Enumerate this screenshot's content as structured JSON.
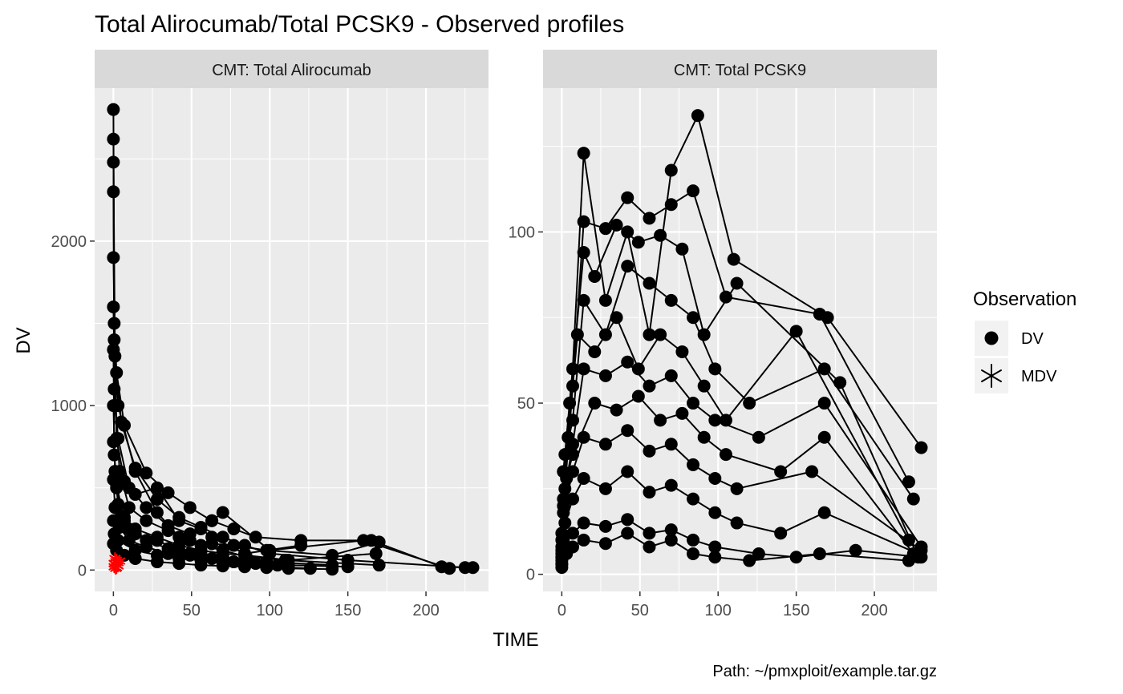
{
  "chart_data": {
    "type": "line",
    "title": "Total Alirocumab/Total PCSK9 - Observed profiles",
    "xlabel": "TIME",
    "ylabel": "DV",
    "caption": "Path: ~/pmxploit/example.tar.gz",
    "grid": true,
    "legend": {
      "title": "Observation",
      "position": "right",
      "entries": [
        {
          "label": "DV",
          "shape": "filled-circle",
          "color": "#000000"
        },
        {
          "label": "MDV",
          "shape": "asterisk",
          "color": "#000000"
        }
      ]
    },
    "colors": {
      "DV": "#000000",
      "MDV": "#ff0000",
      "panel_bg": "#ebebeb",
      "strip_bg": "#d9d9d9"
    },
    "panels": [
      {
        "strip": "CMT: Total Alirocumab",
        "xlim": [
          -12,
          240
        ],
        "ylim": [
          -130,
          2930
        ],
        "x_ticks": [
          0,
          50,
          100,
          150,
          200
        ],
        "x_tick_labels": [
          "0",
          "50",
          "100",
          "150",
          "200"
        ],
        "y_ticks": [
          0,
          1000,
          2000
        ],
        "y_tick_labels": [
          "0",
          "1000",
          "2000"
        ],
        "series": [
          {
            "x": [
              0,
              0.5,
              3,
              14,
              28,
              42,
              56,
              70,
              85,
              110,
              170
            ],
            "y": [
              2800,
              1400,
              1000,
              600,
              350,
              200,
              150,
              120,
              80,
              60,
              30
            ]
          },
          {
            "x": [
              0,
              0.5,
              2,
              7,
              21,
              35,
              49,
              63,
              77,
              91,
              120,
              165,
              210,
              230
            ],
            "y": [
              2620,
              1500,
              1200,
              880,
              590,
              470,
              380,
              300,
              250,
              200,
              180,
              180,
              20,
              15
            ]
          },
          {
            "x": [
              0,
              1,
              5,
              14,
              28,
              42,
              56,
              70,
              84,
              100,
              150,
              225
            ],
            "y": [
              2480,
              1300,
              900,
              620,
              430,
              320,
              260,
              200,
              150,
              100,
              60,
              15
            ]
          },
          {
            "x": [
              0,
              0.5,
              3,
              10,
              21,
              35,
              49,
              63,
              70,
              100,
              160,
              215
            ],
            "y": [
              2300,
              1100,
              800,
              500,
              380,
              270,
              220,
              300,
              350,
              120,
              180,
              10
            ]
          },
          {
            "x": [
              0,
              2,
              7,
              14,
              28,
              42,
              56,
              63,
              84,
              120
            ],
            "y": [
              1900,
              800,
              540,
              460,
              500,
              300,
              250,
              200,
              100,
              150
            ]
          },
          {
            "x": [
              0,
              1,
              4,
              10,
              21,
              35,
              49,
              63,
              77,
              98,
              140,
              170
            ],
            "y": [
              1600,
              1000,
              600,
              380,
              300,
              240,
              180,
              160,
              150,
              120,
              90,
              170
            ]
          },
          {
            "x": [
              0,
              0.5,
              2,
              7,
              14,
              28,
              42,
              56,
              70,
              84,
              112,
              168
            ],
            "y": [
              1340,
              700,
              520,
              300,
              250,
              200,
              150,
              120,
              100,
              90,
              60,
              100
            ]
          },
          {
            "x": [
              0,
              1,
              3,
              7,
              14,
              28,
              42,
              56,
              70,
              84,
              98,
              140
            ],
            "y": [
              1000,
              600,
              400,
              320,
              220,
              180,
              120,
              100,
              80,
              60,
              50,
              30
            ]
          },
          {
            "x": [
              0,
              2,
              5,
              10,
              21,
              35,
              49,
              56,
              70,
              84,
              105
            ],
            "y": [
              780,
              500,
              330,
              250,
              180,
              130,
              100,
              80,
              60,
              50,
              30
            ]
          },
          {
            "x": [
              0,
              1,
              4,
              10,
              21,
              35,
              49,
              63,
              77,
              91,
              112,
              150
            ],
            "y": [
              550,
              380,
              260,
              180,
              140,
              100,
              90,
              70,
              50,
              40,
              30,
              20
            ]
          },
          {
            "x": [
              0,
              0.5,
              3,
              14,
              28,
              42,
              56,
              70,
              84,
              98,
              126
            ],
            "y": [
              300,
              220,
              180,
              120,
              90,
              70,
              60,
              40,
              30,
              20,
              10
            ]
          },
          {
            "x": [
              0,
              2,
              7,
              14,
              28,
              42,
              56,
              70,
              84,
              98,
              112,
              140
            ],
            "y": [
              160,
              120,
              90,
              70,
              50,
              40,
              30,
              25,
              20,
              15,
              10,
              5
            ]
          }
        ],
        "mdv_points": {
          "x": [
            0.5,
            1,
            1.5,
            2,
            2.5,
            3,
            1,
            2,
            3,
            4,
            0.5,
            1.5
          ],
          "y": [
            20,
            35,
            50,
            60,
            30,
            45,
            70,
            15,
            25,
            55,
            40,
            10
          ]
        }
      },
      {
        "strip": "CMT: Total PCSK9",
        "xlim": [
          -12,
          240
        ],
        "ylim": [
          -5,
          142
        ],
        "x_ticks": [
          0,
          50,
          100,
          150,
          200
        ],
        "x_tick_labels": [
          "0",
          "50",
          "100",
          "150",
          "200"
        ],
        "y_ticks": [
          0,
          50,
          100
        ],
        "y_tick_labels": [
          "0",
          "50",
          "100"
        ],
        "series": [
          {
            "x": [
              0,
              1,
              7,
              14,
              28,
              42,
              56,
              70,
              87,
              110,
              170,
              230
            ],
            "y": [
              10,
              30,
              60,
              123,
              80,
              100,
              70,
              118,
              134,
              92,
              75,
              37
            ]
          },
          {
            "x": [
              0,
              2,
              7,
              14,
              28,
              42,
              56,
              70,
              84,
              105,
              165,
              222
            ],
            "y": [
              5,
              25,
              55,
              103,
              101,
              110,
              104,
              108,
              112,
              81,
              76,
              27
            ]
          },
          {
            "x": [
              0,
              1,
              5,
              14,
              21,
              35,
              49,
              63,
              77,
              91,
              112,
              178,
              228
            ],
            "y": [
              3,
              20,
              50,
              94,
              87,
              102,
              97,
              99,
              95,
              70,
              85,
              56,
              5
            ]
          },
          {
            "x": [
              0,
              2,
              7,
              14,
              28,
              42,
              56,
              70,
              84,
              98,
              120,
              168,
              225
            ],
            "y": [
              8,
              35,
              45,
              80,
              70,
              90,
              85,
              80,
              75,
              60,
              50,
              60,
              22
            ]
          },
          {
            "x": [
              0,
              1,
              4,
              10,
              21,
              35,
              49,
              63,
              77,
              91,
              105,
              150,
              222
            ],
            "y": [
              4,
              30,
              40,
              70,
              65,
              75,
              60,
              70,
              65,
              55,
              45,
              71,
              10
            ]
          },
          {
            "x": [
              0,
              1,
              7,
              14,
              28,
              42,
              56,
              70,
              84,
              98,
              126,
              168,
              230
            ],
            "y": [
              6,
              22,
              38,
              60,
              58,
              62,
              55,
              58,
              50,
              45,
              40,
              50,
              8
            ]
          },
          {
            "x": [
              0,
              3,
              7,
              21,
              35,
              49,
              63,
              77,
              91,
              105,
              140,
              168,
              225
            ],
            "y": [
              12,
              28,
              35,
              50,
              48,
              52,
              45,
              47,
              40,
              35,
              30,
              40,
              6
            ]
          },
          {
            "x": [
              0,
              1,
              7,
              14,
              28,
              42,
              56,
              70,
              84,
              98,
              112,
              160,
              230
            ],
            "y": [
              5,
              18,
              30,
              40,
              38,
              42,
              36,
              38,
              32,
              28,
              25,
              30,
              7
            ]
          },
          {
            "x": [
              0,
              2,
              7,
              14,
              28,
              42,
              56,
              70,
              84,
              98,
              112,
              140,
              168,
              228
            ],
            "y": [
              7,
              15,
              22,
              28,
              25,
              30,
              24,
              26,
              22,
              18,
              15,
              12,
              18,
              6
            ]
          },
          {
            "x": [
              0,
              1,
              7,
              14,
              28,
              42,
              56,
              70,
              84,
              98,
              126,
              150,
              188,
              230
            ],
            "y": [
              3,
              10,
              12,
              15,
              14,
              16,
              12,
              13,
              10,
              8,
              6,
              5,
              7,
              5
            ]
          },
          {
            "x": [
              0,
              3,
              7,
              14,
              28,
              42,
              56,
              70,
              84,
              98,
              120,
              165,
              222
            ],
            "y": [
              2,
              6,
              8,
              10,
              9,
              12,
              8,
              10,
              6,
              5,
              4,
              6,
              4
            ]
          }
        ],
        "mdv_points": {
          "x": [],
          "y": []
        }
      }
    ]
  }
}
